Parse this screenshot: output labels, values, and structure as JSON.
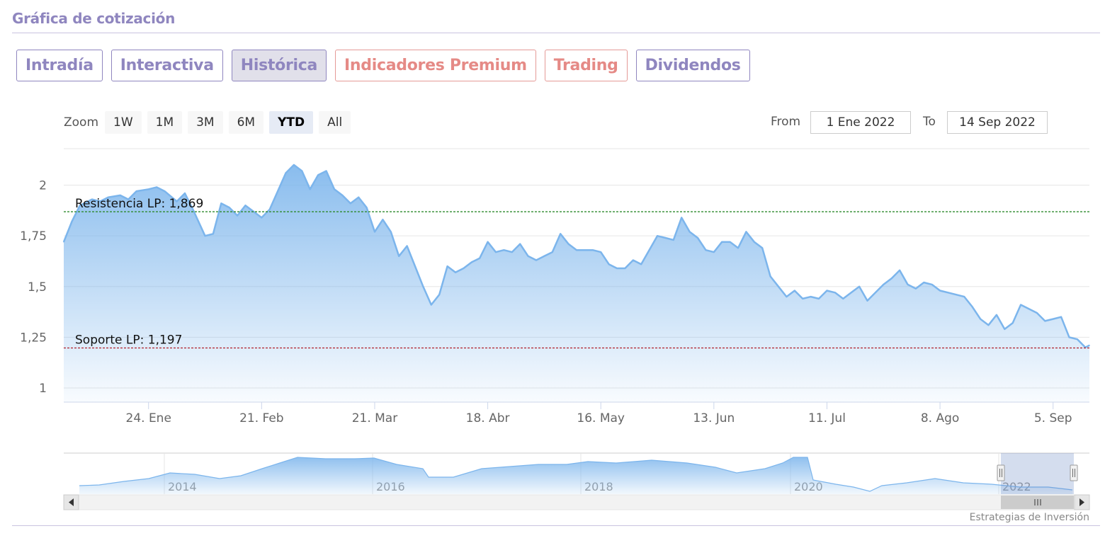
{
  "header": {
    "title": "Gráfica de cotización"
  },
  "tabs": [
    {
      "label": "Intradía",
      "kind": "normal",
      "active": false
    },
    {
      "label": "Interactiva",
      "kind": "normal",
      "active": false
    },
    {
      "label": "Histórica",
      "kind": "normal",
      "active": true
    },
    {
      "label": "Indicadores Premium",
      "kind": "premium",
      "active": false
    },
    {
      "label": "Trading",
      "kind": "premium",
      "active": false
    },
    {
      "label": "Dividendos",
      "kind": "normal",
      "active": false
    }
  ],
  "zoom": {
    "label": "Zoom",
    "buttons": [
      "1W",
      "1M",
      "3M",
      "6M",
      "YTD",
      "All"
    ],
    "active": "YTD"
  },
  "range": {
    "from_label": "From",
    "from_value": "1 Ene 2022",
    "to_label": "To",
    "to_value": "14 Sep 2022"
  },
  "credit": "Estrategias de Inversión",
  "colors": {
    "series": "#7cb5ec",
    "resistance": "#2e8b2e",
    "support": "#b0202a",
    "accent": "#8f86bf",
    "premium": "#e58a86"
  },
  "chart_data": {
    "type": "area",
    "ylim": [
      1,
      2.1
    ],
    "y_ticks": [
      {
        "value": 1,
        "label": "1"
      },
      {
        "value": 1.25,
        "label": "1,25"
      },
      {
        "value": 1.5,
        "label": "1,5"
      },
      {
        "value": 1.75,
        "label": "1,75"
      },
      {
        "value": 2,
        "label": "2"
      }
    ],
    "xlim": [
      "2022-01-03",
      "2022-09-14"
    ],
    "x_ticks": [
      {
        "date": "2022-01-24",
        "label": "24. Ene"
      },
      {
        "date": "2022-02-21",
        "label": "21. Feb"
      },
      {
        "date": "2022-03-21",
        "label": "21. Mar"
      },
      {
        "date": "2022-04-18",
        "label": "18. Abr"
      },
      {
        "date": "2022-05-16",
        "label": "16. May"
      },
      {
        "date": "2022-06-13",
        "label": "13. Jun"
      },
      {
        "date": "2022-07-11",
        "label": "11. Jul"
      },
      {
        "date": "2022-08-08",
        "label": "8. Ago"
      },
      {
        "date": "2022-09-05",
        "label": "5. Sep"
      }
    ],
    "series": [
      {
        "points": [
          [
            "2022-01-03",
            1.72
          ],
          [
            "2022-01-05",
            1.82
          ],
          [
            "2022-01-07",
            1.9
          ],
          [
            "2022-01-10",
            1.93
          ],
          [
            "2022-01-12",
            1.92
          ],
          [
            "2022-01-14",
            1.94
          ],
          [
            "2022-01-17",
            1.95
          ],
          [
            "2022-01-19",
            1.93
          ],
          [
            "2022-01-21",
            1.97
          ],
          [
            "2022-01-24",
            1.98
          ],
          [
            "2022-01-26",
            1.99
          ],
          [
            "2022-01-28",
            1.97
          ],
          [
            "2022-01-31",
            1.92
          ],
          [
            "2022-02-02",
            1.96
          ],
          [
            "2022-02-04",
            1.88
          ],
          [
            "2022-02-07",
            1.75
          ],
          [
            "2022-02-09",
            1.76
          ],
          [
            "2022-02-11",
            1.91
          ],
          [
            "2022-02-13",
            1.89
          ],
          [
            "2022-02-15",
            1.85
          ],
          [
            "2022-02-17",
            1.9
          ],
          [
            "2022-02-19",
            1.87
          ],
          [
            "2022-02-21",
            1.84
          ],
          [
            "2022-02-23",
            1.88
          ],
          [
            "2022-02-25",
            1.97
          ],
          [
            "2022-02-27",
            2.06
          ],
          [
            "2022-03-01",
            2.1
          ],
          [
            "2022-03-03",
            2.07
          ],
          [
            "2022-03-05",
            1.98
          ],
          [
            "2022-03-07",
            2.05
          ],
          [
            "2022-03-09",
            2.07
          ],
          [
            "2022-03-11",
            1.98
          ],
          [
            "2022-03-13",
            1.95
          ],
          [
            "2022-03-15",
            1.91
          ],
          [
            "2022-03-17",
            1.94
          ],
          [
            "2022-03-19",
            1.89
          ],
          [
            "2022-03-21",
            1.77
          ],
          [
            "2022-03-23",
            1.83
          ],
          [
            "2022-03-25",
            1.77
          ],
          [
            "2022-03-27",
            1.65
          ],
          [
            "2022-03-29",
            1.7
          ],
          [
            "2022-03-31",
            1.6
          ],
          [
            "2022-04-02",
            1.5
          ],
          [
            "2022-04-04",
            1.41
          ],
          [
            "2022-04-06",
            1.46
          ],
          [
            "2022-04-08",
            1.6
          ],
          [
            "2022-04-10",
            1.57
          ],
          [
            "2022-04-12",
            1.59
          ],
          [
            "2022-04-14",
            1.62
          ],
          [
            "2022-04-16",
            1.64
          ],
          [
            "2022-04-18",
            1.72
          ],
          [
            "2022-04-20",
            1.67
          ],
          [
            "2022-04-22",
            1.68
          ],
          [
            "2022-04-24",
            1.67
          ],
          [
            "2022-04-26",
            1.71
          ],
          [
            "2022-04-28",
            1.65
          ],
          [
            "2022-04-30",
            1.63
          ],
          [
            "2022-05-02",
            1.65
          ],
          [
            "2022-05-04",
            1.67
          ],
          [
            "2022-05-06",
            1.76
          ],
          [
            "2022-05-08",
            1.71
          ],
          [
            "2022-05-10",
            1.68
          ],
          [
            "2022-05-12",
            1.68
          ],
          [
            "2022-05-14",
            1.68
          ],
          [
            "2022-05-16",
            1.67
          ],
          [
            "2022-05-18",
            1.61
          ],
          [
            "2022-05-20",
            1.59
          ],
          [
            "2022-05-22",
            1.59
          ],
          [
            "2022-05-24",
            1.63
          ],
          [
            "2022-05-26",
            1.61
          ],
          [
            "2022-05-28",
            1.68
          ],
          [
            "2022-05-30",
            1.75
          ],
          [
            "2022-06-01",
            1.74
          ],
          [
            "2022-06-03",
            1.73
          ],
          [
            "2022-06-05",
            1.84
          ],
          [
            "2022-06-07",
            1.77
          ],
          [
            "2022-06-09",
            1.74
          ],
          [
            "2022-06-11",
            1.68
          ],
          [
            "2022-06-13",
            1.67
          ],
          [
            "2022-06-15",
            1.72
          ],
          [
            "2022-06-17",
            1.72
          ],
          [
            "2022-06-19",
            1.69
          ],
          [
            "2022-06-21",
            1.77
          ],
          [
            "2022-06-23",
            1.72
          ],
          [
            "2022-06-25",
            1.69
          ],
          [
            "2022-06-27",
            1.55
          ],
          [
            "2022-06-29",
            1.5
          ],
          [
            "2022-07-01",
            1.45
          ],
          [
            "2022-07-03",
            1.48
          ],
          [
            "2022-07-05",
            1.44
          ],
          [
            "2022-07-07",
            1.45
          ],
          [
            "2022-07-09",
            1.44
          ],
          [
            "2022-07-11",
            1.48
          ],
          [
            "2022-07-13",
            1.47
          ],
          [
            "2022-07-15",
            1.44
          ],
          [
            "2022-07-17",
            1.47
          ],
          [
            "2022-07-19",
            1.5
          ],
          [
            "2022-07-21",
            1.43
          ],
          [
            "2022-07-23",
            1.47
          ],
          [
            "2022-07-25",
            1.51
          ],
          [
            "2022-07-27",
            1.54
          ],
          [
            "2022-07-29",
            1.58
          ],
          [
            "2022-07-31",
            1.51
          ],
          [
            "2022-08-02",
            1.49
          ],
          [
            "2022-08-04",
            1.52
          ],
          [
            "2022-08-06",
            1.51
          ],
          [
            "2022-08-08",
            1.48
          ],
          [
            "2022-08-10",
            1.47
          ],
          [
            "2022-08-12",
            1.46
          ],
          [
            "2022-08-14",
            1.45
          ],
          [
            "2022-08-16",
            1.4
          ],
          [
            "2022-08-18",
            1.34
          ],
          [
            "2022-08-20",
            1.31
          ],
          [
            "2022-08-22",
            1.36
          ],
          [
            "2022-08-24",
            1.29
          ],
          [
            "2022-08-26",
            1.32
          ],
          [
            "2022-08-28",
            1.41
          ],
          [
            "2022-08-30",
            1.39
          ],
          [
            "2022-09-01",
            1.37
          ],
          [
            "2022-09-03",
            1.33
          ],
          [
            "2022-09-05",
            1.34
          ],
          [
            "2022-09-07",
            1.35
          ],
          [
            "2022-09-09",
            1.25
          ],
          [
            "2022-09-11",
            1.24
          ],
          [
            "2022-09-13",
            1.2
          ],
          [
            "2022-09-14",
            1.21
          ]
        ]
      }
    ],
    "annotations": [
      {
        "label": "Resistencia LP: 1,869",
        "value": 1.869,
        "color": "#2e8b2e"
      },
      {
        "label": "Soporte LP: 1,197",
        "value": 1.197,
        "color": "#b0202a"
      }
    ],
    "navigator": {
      "year_labels": [
        "2014",
        "2016",
        "2018",
        "2020",
        "2022"
      ],
      "selection": "2022"
    },
    "grid": true,
    "legend": "none"
  }
}
